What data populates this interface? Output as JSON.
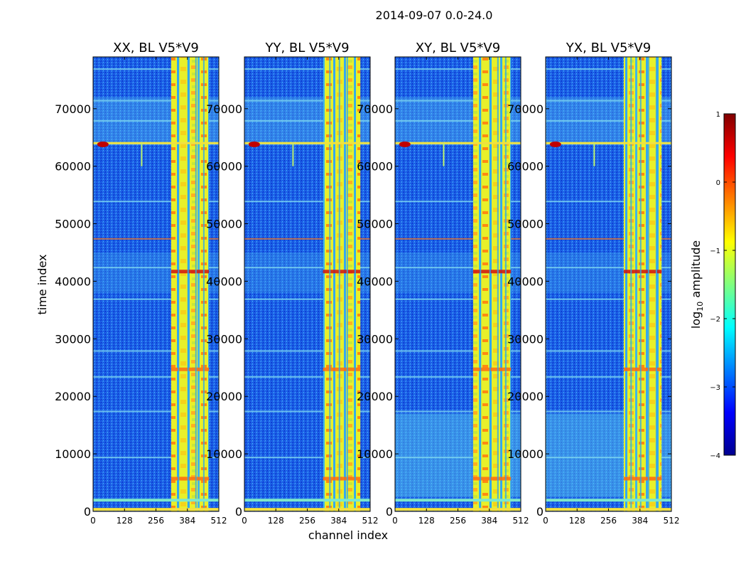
{
  "figure": {
    "suptitle": "2014-09-07 0.0-24.0"
  },
  "chart_data": {
    "type": "heatmap",
    "title": "2014-09-07 0.0-24.0",
    "xlabel": "channel index",
    "ylabel": "time index",
    "xlim": [
      0,
      512
    ],
    "ylim": [
      0,
      79000
    ],
    "xticks": [
      "0",
      "128",
      "256",
      "384",
      "512"
    ],
    "yticks": [
      "0",
      "10000",
      "20000",
      "30000",
      "40000",
      "50000",
      "60000",
      "70000"
    ],
    "panels": [
      {
        "title": "XX, BL V5*V9"
      },
      {
        "title": "YY, BL V5*V9"
      },
      {
        "title": "XY, BL V5*V9"
      },
      {
        "title": "YX, BL V5*V9"
      }
    ],
    "colorbar": {
      "label": "log10 amplitude",
      "range": [
        -4,
        1
      ],
      "colormap": "jet",
      "ticks": [
        "1",
        "0",
        "−1",
        "−2",
        "−3",
        "−4"
      ]
    }
  }
}
